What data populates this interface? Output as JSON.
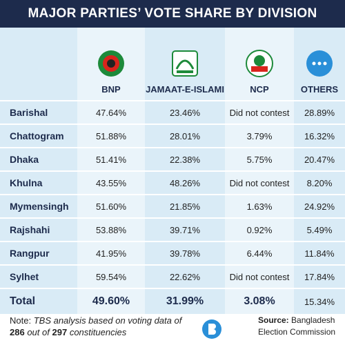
{
  "header": {
    "title": "MAJOR PARTIES’ VOTE SHARE BY DIVISION"
  },
  "table": {
    "columns": [
      null,
      "BNP",
      "JAMAAT-E-ISLAMI",
      "NCP",
      "OTHERS"
    ],
    "rows": [
      [
        "Barishal",
        "47.64%",
        "23.46%",
        "Did not contest",
        "28.89%"
      ],
      [
        "Chattogram",
        "51.88%",
        "28.01%",
        "3.79%",
        "16.32%"
      ],
      [
        "Dhaka",
        "51.41%",
        "22.38%",
        "5.75%",
        "20.47%"
      ],
      [
        "Khulna",
        "43.55%",
        "48.26%",
        "Did not contest",
        "8.20%"
      ],
      [
        "Mymensingh",
        "51.60%",
        "21.85%",
        "1.63%",
        "24.92%"
      ],
      [
        "Rajshahi",
        "53.88%",
        "39.71%",
        "0.92%",
        "5.49%"
      ],
      [
        "Rangpur",
        "41.95%",
        "39.78%",
        "6.44%",
        "11.84%"
      ],
      [
        "Sylhet",
        "59.54%",
        "22.62%",
        "Did not contest",
        "17.84%"
      ]
    ],
    "total": [
      "Total",
      "49.60%",
      "31.99%",
      "3.08%",
      "15.34%"
    ]
  },
  "note": {
    "label": "Note:",
    "text1": "TBS analysis based on voting data of",
    "n1": "286",
    "text2": "out of",
    "n2": "297",
    "text3": "constituencies"
  },
  "source": {
    "label": "Source:",
    "text": "Bangladesh Election Commission"
  }
}
